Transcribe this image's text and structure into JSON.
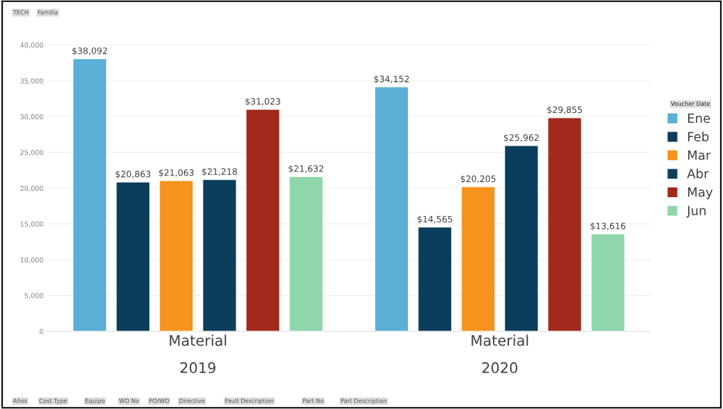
{
  "chart_data": {
    "type": "bar",
    "categories": [
      "Material\n2019",
      "Material\n2020"
    ],
    "series": [
      {
        "name": "Ene",
        "color": "#5aafd6",
        "values": [
          38092,
          34152
        ],
        "value_labels": [
          "$38,092",
          "$34,152"
        ]
      },
      {
        "name": "Feb",
        "color": "#0b3d5c",
        "values": [
          20863,
          14565
        ],
        "value_labels": [
          "$20,863",
          "$14,565"
        ]
      },
      {
        "name": "Mar",
        "color": "#f7931e",
        "values": [
          21063,
          20205
        ],
        "value_labels": [
          "$21,063",
          "$20,205"
        ]
      },
      {
        "name": "Abr",
        "color": "#0b3d5c",
        "values": [
          21218,
          25962
        ],
        "value_labels": [
          "$21,218",
          "$25,962"
        ]
      },
      {
        "name": "May",
        "color": "#a12a1d",
        "values": [
          31023,
          29855
        ],
        "value_labels": [
          "$31,023",
          "$29,855"
        ]
      },
      {
        "name": "Jun",
        "color": "#8fd6ab",
        "values": [
          21632,
          13616
        ],
        "value_labels": [
          "$21,632",
          "$13,616"
        ]
      }
    ],
    "ylim": [
      0,
      40000
    ],
    "yticks": [
      {
        "value": 0,
        "label": "0"
      },
      {
        "value": 5000,
        "label": "5,000"
      },
      {
        "value": 10000,
        "label": "10,000"
      },
      {
        "value": 15000,
        "label": "15,000"
      },
      {
        "value": 20000,
        "label": "20,000"
      },
      {
        "value": 25000,
        "label": "25,000"
      },
      {
        "value": 30000,
        "label": "30,000"
      },
      {
        "value": 35000,
        "label": "35,000"
      },
      {
        "value": 40000,
        "label": "40,000"
      }
    ],
    "grid": "y",
    "legend": "right",
    "legend_title": "Voucher Date",
    "annotations": [
      "TECH",
      "Familia",
      "Años",
      "Cost Type",
      "Equipo",
      "WO No",
      "PO/WO",
      "Directive",
      "Fault Description",
      "Part No",
      "Part Description"
    ]
  }
}
